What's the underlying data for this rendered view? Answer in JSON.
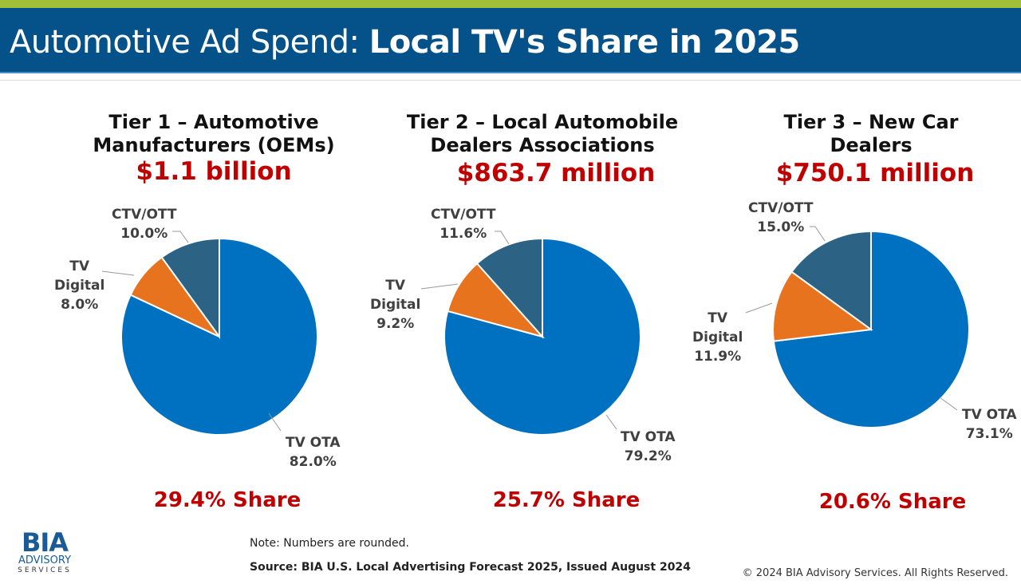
{
  "header": {
    "title_light": "Automotive Ad Spend: ",
    "title_bold": "Local TV's Share in 2025"
  },
  "colors": {
    "tv_ota": "#0070C0",
    "tv_digital": "#E8731F",
    "ctv_ott": "#2C6384",
    "accent_red": "#C00000",
    "header_bg": "#05528A",
    "top_bar": "#A2C037"
  },
  "chart_data": [
    {
      "type": "pie",
      "title": "Tier 1 – Automotive Manufacturers (OEMs)",
      "total": "$1.1 billion",
      "share": "29.4% Share",
      "slices": [
        {
          "name": "TV OTA",
          "value": 82.0,
          "label": "82.0%"
        },
        {
          "name": "TV Digital",
          "value": 8.0,
          "label": "8.0%"
        },
        {
          "name": "CTV/OTT",
          "value": 10.0,
          "label": "10.0%"
        }
      ]
    },
    {
      "type": "pie",
      "title": "Tier 2 – Local Automobile Dealers Associations",
      "total": "$863.7 million",
      "share": "25.7% Share",
      "slices": [
        {
          "name": "TV OTA",
          "value": 79.2,
          "label": "79.2%"
        },
        {
          "name": "TV Digital",
          "value": 9.2,
          "label": "9.2%"
        },
        {
          "name": "CTV/OTT",
          "value": 11.6,
          "label": "11.6%"
        }
      ]
    },
    {
      "type": "pie",
      "title": "Tier 3 – New Car Dealers",
      "total": "$750.1 million",
      "share": "20.6% Share",
      "slices": [
        {
          "name": "TV OTA",
          "value": 73.1,
          "label": "73.1%"
        },
        {
          "name": "TV Digital",
          "value": 11.9,
          "label": "11.9%"
        },
        {
          "name": "CTV/OTT",
          "value": 15.0,
          "label": "15.0%"
        }
      ]
    }
  ],
  "labels": {
    "ctv": "CTV/OTT",
    "tv": "TV",
    "digital": "Digital",
    "ota": "TV OTA"
  },
  "footer": {
    "note": "Note: Numbers are rounded.",
    "source": "Source: BIA U.S. Local Advertising Forecast 2025, Issued August 2024",
    "copyright": "© 2024 BIA Advisory Services. All Rights Reserved.",
    "logo_text": "BIA ADVISORY SERVICES"
  }
}
